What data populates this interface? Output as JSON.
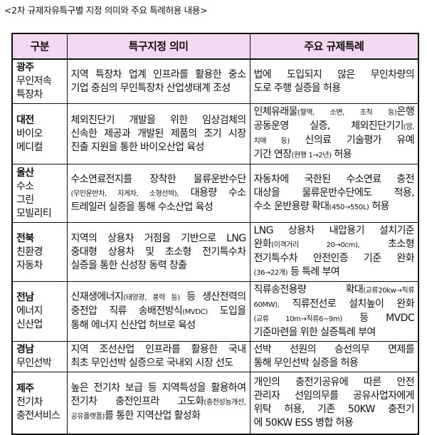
{
  "caption": "<2차 규제자유특구별 지정 의미와 주요 특례허용 내용>",
  "headers": [
    "구분",
    "특구지정 의미",
    "주요 규제특례"
  ],
  "rows": [
    {
      "region": "광주",
      "name": [
        "무인저속",
        "특장차"
      ],
      "meaning": [
        [
          {
            "t": "지역 특장차 업계 인프라를 활용한 중소"
          }
        ],
        [
          {
            "t": "기업 중심의 무인특장차 산업생태계 조성"
          }
        ]
      ],
      "special": [
        [
          {
            "t": "법에 도입되지 않은 무인차량의"
          }
        ],
        [
          {
            "t": "도로 주행 실증을 허용"
          }
        ]
      ]
    },
    {
      "region": "대전",
      "name": [
        "바이오",
        "메디컬"
      ],
      "meaning": [
        [
          {
            "t": "체외진단기 개발을 위한 임상검체의"
          }
        ],
        [
          {
            "t": "신속한 제공과 개발된 제품의 조기 시장"
          }
        ],
        [
          {
            "t": "진출 지원을 통한 바이오산업 육성"
          }
        ]
      ],
      "special": [
        [
          {
            "t": "인체유래물"
          },
          {
            "t": "(혈액, 소변, 조직 등)",
            "s": 1
          },
          {
            "t": "은행"
          }
        ],
        [
          {
            "t": "공동운영 실증, 체외진단기기"
          },
          {
            "t": "(암,",
            "s": 1
          }
        ],
        [
          {
            "t": "치매 등)",
            "s": 1
          },
          {
            "t": " 신의료 기술평가 유예"
          }
        ],
        [
          {
            "t": "기간 연장"
          },
          {
            "t": "(현행 1→2년)",
            "s": 1
          },
          {
            "t": " 허용"
          }
        ]
      ]
    },
    {
      "region": "울산",
      "name": [
        "수소",
        "그린",
        "모빌리티"
      ],
      "meaning": [
        [
          {
            "t": "수소연료전지를 장착한 물류운반수단"
          }
        ],
        [
          {
            "t": "(무인운반차, 지게차, 소형선박),",
            "s": 1
          },
          {
            "t": " 대용량 수소"
          }
        ],
        [
          {
            "t": "트레일러 실증을 통해 수소산업 육성"
          }
        ]
      ],
      "special": [
        [
          {
            "t": "자동차에 국한된 수소연료 충전"
          }
        ],
        [
          {
            "t": "대상을 물류운반수단에도 적용,"
          }
        ],
        [
          {
            "t": "수소 운반용량 확대"
          },
          {
            "t": "(450→550L)",
            "s": 1
          },
          {
            "t": " 허용"
          }
        ]
      ]
    },
    {
      "region": "전북",
      "name": [
        "친환경",
        "자동차"
      ],
      "meaning": [
        [
          {
            "t": "지역의 상용차 거점을 기반으로 LNG"
          }
        ],
        [
          {
            "t": "중대형 상용차 및 초소형 전기특수차"
          }
        ],
        [
          {
            "t": "실증을 통한 신성장 동력 창출"
          }
        ]
      ],
      "special": [
        [
          {
            "t": "LNG 상용차 내압용기 설치기준"
          }
        ],
        [
          {
            "t": "완화"
          },
          {
            "t": "(이격거리 20→0cm),",
            "s": 1
          },
          {
            "t": " 초소형"
          }
        ],
        [
          {
            "t": "전기특수차 안전인증 기준 완화"
          }
        ],
        [
          {
            "t": "(36→22개)",
            "s": 1
          },
          {
            "t": " 등 특례 부여"
          }
        ]
      ]
    },
    {
      "region": "전남",
      "name": [
        "에너지",
        "신산업"
      ],
      "meaning": [
        [
          {
            "t": "신재생에너지"
          },
          {
            "t": "(태양광, 풍력 등)",
            "s": 1
          },
          {
            "t": " 등 생산전력의"
          }
        ],
        [
          {
            "t": "중전압 직류 송배전방식"
          },
          {
            "t": "(MVDC)",
            "s": 1
          },
          {
            "t": " 도입을"
          }
        ],
        [
          {
            "t": "통해 에너지 신산업 허브로 육성"
          }
        ]
      ],
      "special": [
        [
          {
            "t": "직류송전용량 확대"
          },
          {
            "t": "(교류20kw→직류",
            "s": 1
          }
        ],
        [
          {
            "t": "60MW),",
            "s": 1
          },
          {
            "t": " 직류전선로 설치높이 완화"
          }
        ],
        [
          {
            "t": "(교류 10m→직류6~9m)",
            "s": 1
          },
          {
            "t": " 등 MVDC"
          }
        ],
        [
          {
            "t": "기준마련을 위한 실증특례 부여"
          }
        ]
      ]
    },
    {
      "region": "경남",
      "name": [
        "무인선박"
      ],
      "meaning": [
        [
          {
            "t": "지역 조선산업 인프라를 활용한 국내"
          }
        ],
        [
          {
            "t": "최초 무인선박 실증으로 국내외 시장 선도"
          }
        ]
      ],
      "special": [
        [
          {
            "t": "선박 선원의 승선의무 면제를"
          }
        ],
        [
          {
            "t": "통해 무인선박 실증을 허용"
          }
        ]
      ]
    },
    {
      "region": "제주",
      "name": [
        "전기차",
        "충전서비스"
      ],
      "meaning": [
        [
          {
            "t": "높은 전기차 보급 등 지역특성을 활용하여"
          }
        ],
        [
          {
            "t": "전기차 충전인프라 고도화"
          },
          {
            "t": "(충전성능개선,",
            "s": 1
          }
        ],
        [
          {
            "t": "공유플랫폼)",
            "s": 1
          },
          {
            "t": "를 통한 지역산업 활성화"
          }
        ]
      ],
      "special": [
        [
          {
            "t": "개인의 충전기공유에 따른 안전"
          }
        ],
        [
          {
            "t": "관리자 선임의무를 공유사업자에게"
          }
        ],
        [
          {
            "t": "위탁 허용, 기존 50KW 충전기"
          }
        ],
        [
          {
            "t": "에 50KW ESS 병합 허용"
          }
        ]
      ]
    }
  ]
}
